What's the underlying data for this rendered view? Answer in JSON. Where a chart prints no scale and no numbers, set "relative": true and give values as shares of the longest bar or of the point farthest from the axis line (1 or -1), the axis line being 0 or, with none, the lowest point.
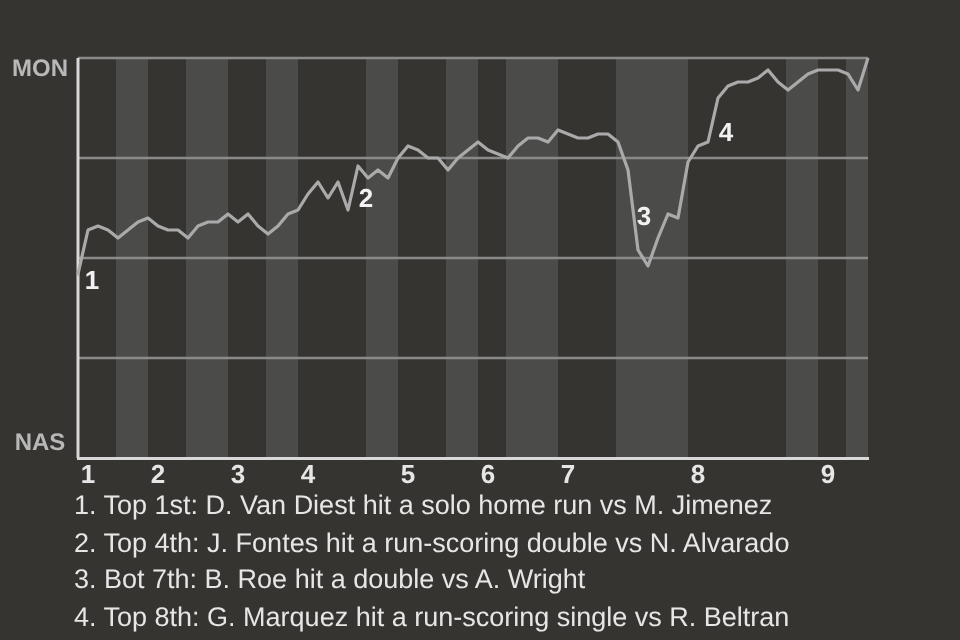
{
  "chart_data": {
    "type": "line",
    "relative": true,
    "categories": [
      null,
      "1",
      null,
      null,
      null,
      null,
      null,
      null,
      "2",
      null,
      null,
      null,
      null,
      null,
      null,
      null,
      "3",
      null,
      null,
      null,
      null,
      null,
      null,
      "4",
      null,
      null,
      null,
      null,
      null,
      null,
      null,
      null,
      null,
      "5",
      null,
      null,
      null,
      null,
      null,
      null,
      null,
      "6",
      null,
      null,
      null,
      null,
      null,
      null,
      null,
      "7",
      null,
      null,
      null,
      null,
      null,
      null,
      null,
      null,
      null,
      null,
      null,
      null,
      "8",
      null,
      null,
      null,
      null,
      null,
      null,
      null,
      null,
      null,
      null,
      null,
      null,
      "9",
      null,
      null,
      null,
      null
    ],
    "series": [
      {
        "color": "#aaaaaa",
        "values": [
          0.46,
          0.57,
          0.58,
          0.57,
          0.55,
          0.57,
          0.59,
          0.6,
          0.58,
          0.57,
          0.57,
          0.55,
          0.58,
          0.59,
          0.59,
          0.61,
          0.59,
          0.61,
          0.58,
          0.56,
          0.58,
          0.61,
          0.62,
          0.66,
          0.69,
          0.65,
          0.69,
          0.62,
          0.73,
          0.7,
          0.72,
          0.7,
          0.75,
          0.78,
          0.77,
          0.75,
          0.75,
          0.72,
          0.75,
          0.77,
          0.79,
          0.77,
          0.76,
          0.75,
          0.78,
          0.8,
          0.8,
          0.79,
          0.82,
          0.81,
          0.8,
          0.8,
          0.81,
          0.81,
          0.79,
          0.72,
          0.52,
          0.48,
          0.55,
          0.61,
          0.6,
          0.74,
          0.78,
          0.79,
          0.9,
          0.93,
          0.94,
          0.94,
          0.95,
          0.97,
          0.94,
          0.92,
          0.94,
          0.96,
          0.97,
          0.97,
          0.97,
          0.96,
          0.92,
          1
        ]
      }
    ],
    "legend": false,
    "marker": "none",
    "line_style": "solid",
    "ref_lines": [
      {
        "axis": "y",
        "value": 0.25,
        "color": "#8a8a8a"
      },
      {
        "axis": "y",
        "value": 0.5,
        "color": "#8a8a8a"
      },
      {
        "axis": "y",
        "value": 0.75,
        "color": "#8a8a8a"
      },
      {
        "axis": "y",
        "value": 1,
        "color": "#8a8a8a"
      }
    ],
    "annotations": [
      "MON",
      "NAS",
      "1",
      "2",
      "3",
      "4",
      "1. Top 1st: D. Van Diest hit a solo home run vs M. Jimenez",
      "2. Top 4th: J. Fontes hit a run-scoring double vs N. Alvarado",
      "3. Bot 7th: B. Roe hit a double vs A. Wright",
      "4. Top 8th: G. Marquez hit a run-scoring single vs R. Beltran"
    ]
  }
}
